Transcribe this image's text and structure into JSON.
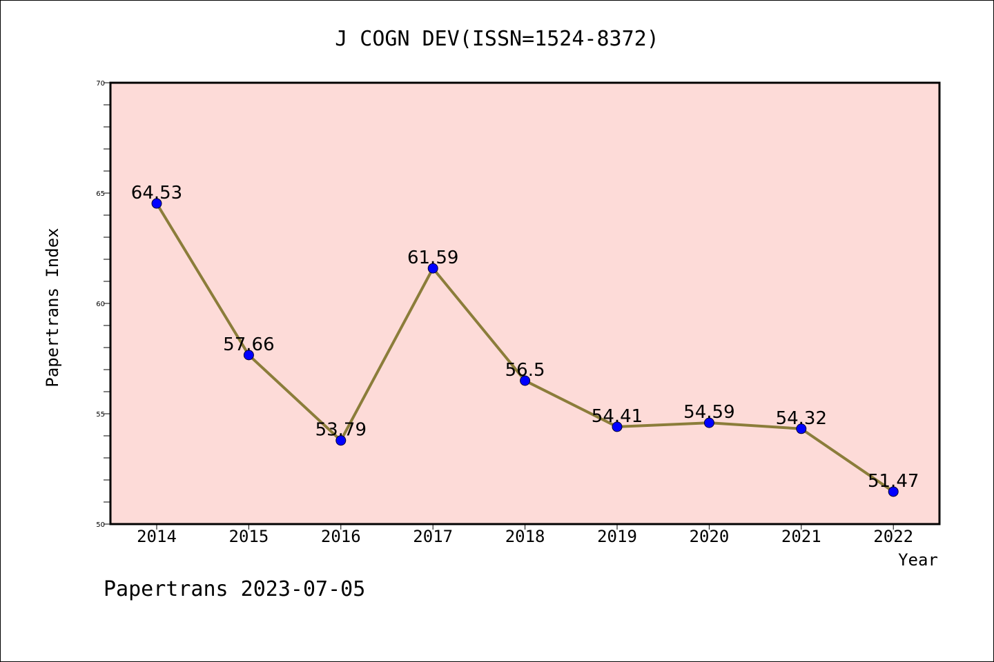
{
  "chart_data": {
    "type": "line",
    "title": "J COGN DEV(ISSN=1524-8372)",
    "xlabel": "Year",
    "ylabel": "Papertrans Index",
    "categories": [
      "2014",
      "2015",
      "2016",
      "2017",
      "2018",
      "2019",
      "2020",
      "2021",
      "2022"
    ],
    "series": [
      {
        "values": [
          64.53,
          57.66,
          53.79,
          61.59,
          56.5,
          54.41,
          54.59,
          54.32,
          51.47
        ],
        "labels": [
          "64.53",
          "57.66",
          "53.79",
          "61.59",
          "56.5",
          "54.41",
          "54.59",
          "54.32",
          "51.47"
        ],
        "line_color": "#8b7d3a",
        "marker_color": "#0000ff"
      }
    ],
    "ylim": [
      50,
      70
    ],
    "yticks": [
      "50",
      "55",
      "60",
      "65",
      "70"
    ],
    "plot_background": "#fddbd8",
    "grid": false
  },
  "footer": "Papertrans 2023-07-05"
}
